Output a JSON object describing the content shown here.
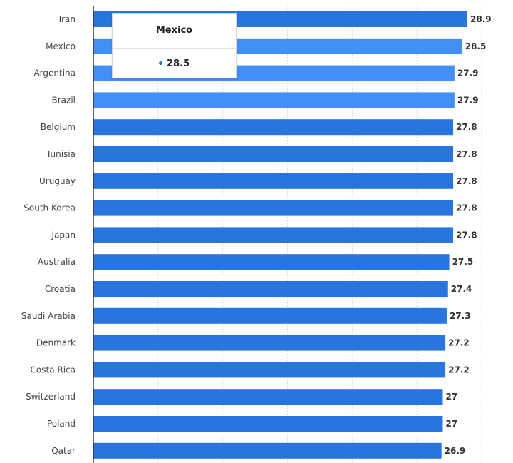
{
  "colors": {
    "bar": "#2876dd",
    "bar_highlight": "#4290f5",
    "grid": "#dcdcdc",
    "axis": "#333333"
  },
  "tooltip": {
    "title": "Mexico",
    "value": "28.5"
  },
  "chart_data": {
    "type": "bar",
    "orientation": "horizontal",
    "categories": [
      "Iran",
      "Mexico",
      "Argentina",
      "Brazil",
      "Belgium",
      "Tunisia",
      "Uruguay",
      "South Korea",
      "Japan",
      "Australia",
      "Croatia",
      "Saudi Arabia",
      "Denmark",
      "Costa Rica",
      "Switzerland",
      "Poland",
      "Qatar"
    ],
    "values": [
      28.9,
      28.5,
      27.9,
      27.9,
      27.8,
      27.8,
      27.8,
      27.8,
      27.8,
      27.5,
      27.4,
      27.3,
      27.2,
      27.2,
      27,
      27,
      26.9
    ],
    "highlighted": [
      "Mexico",
      "Argentina",
      "Brazil"
    ],
    "xlim": [
      0,
      30
    ],
    "grid": true,
    "data_labels": true,
    "legend": "none"
  }
}
